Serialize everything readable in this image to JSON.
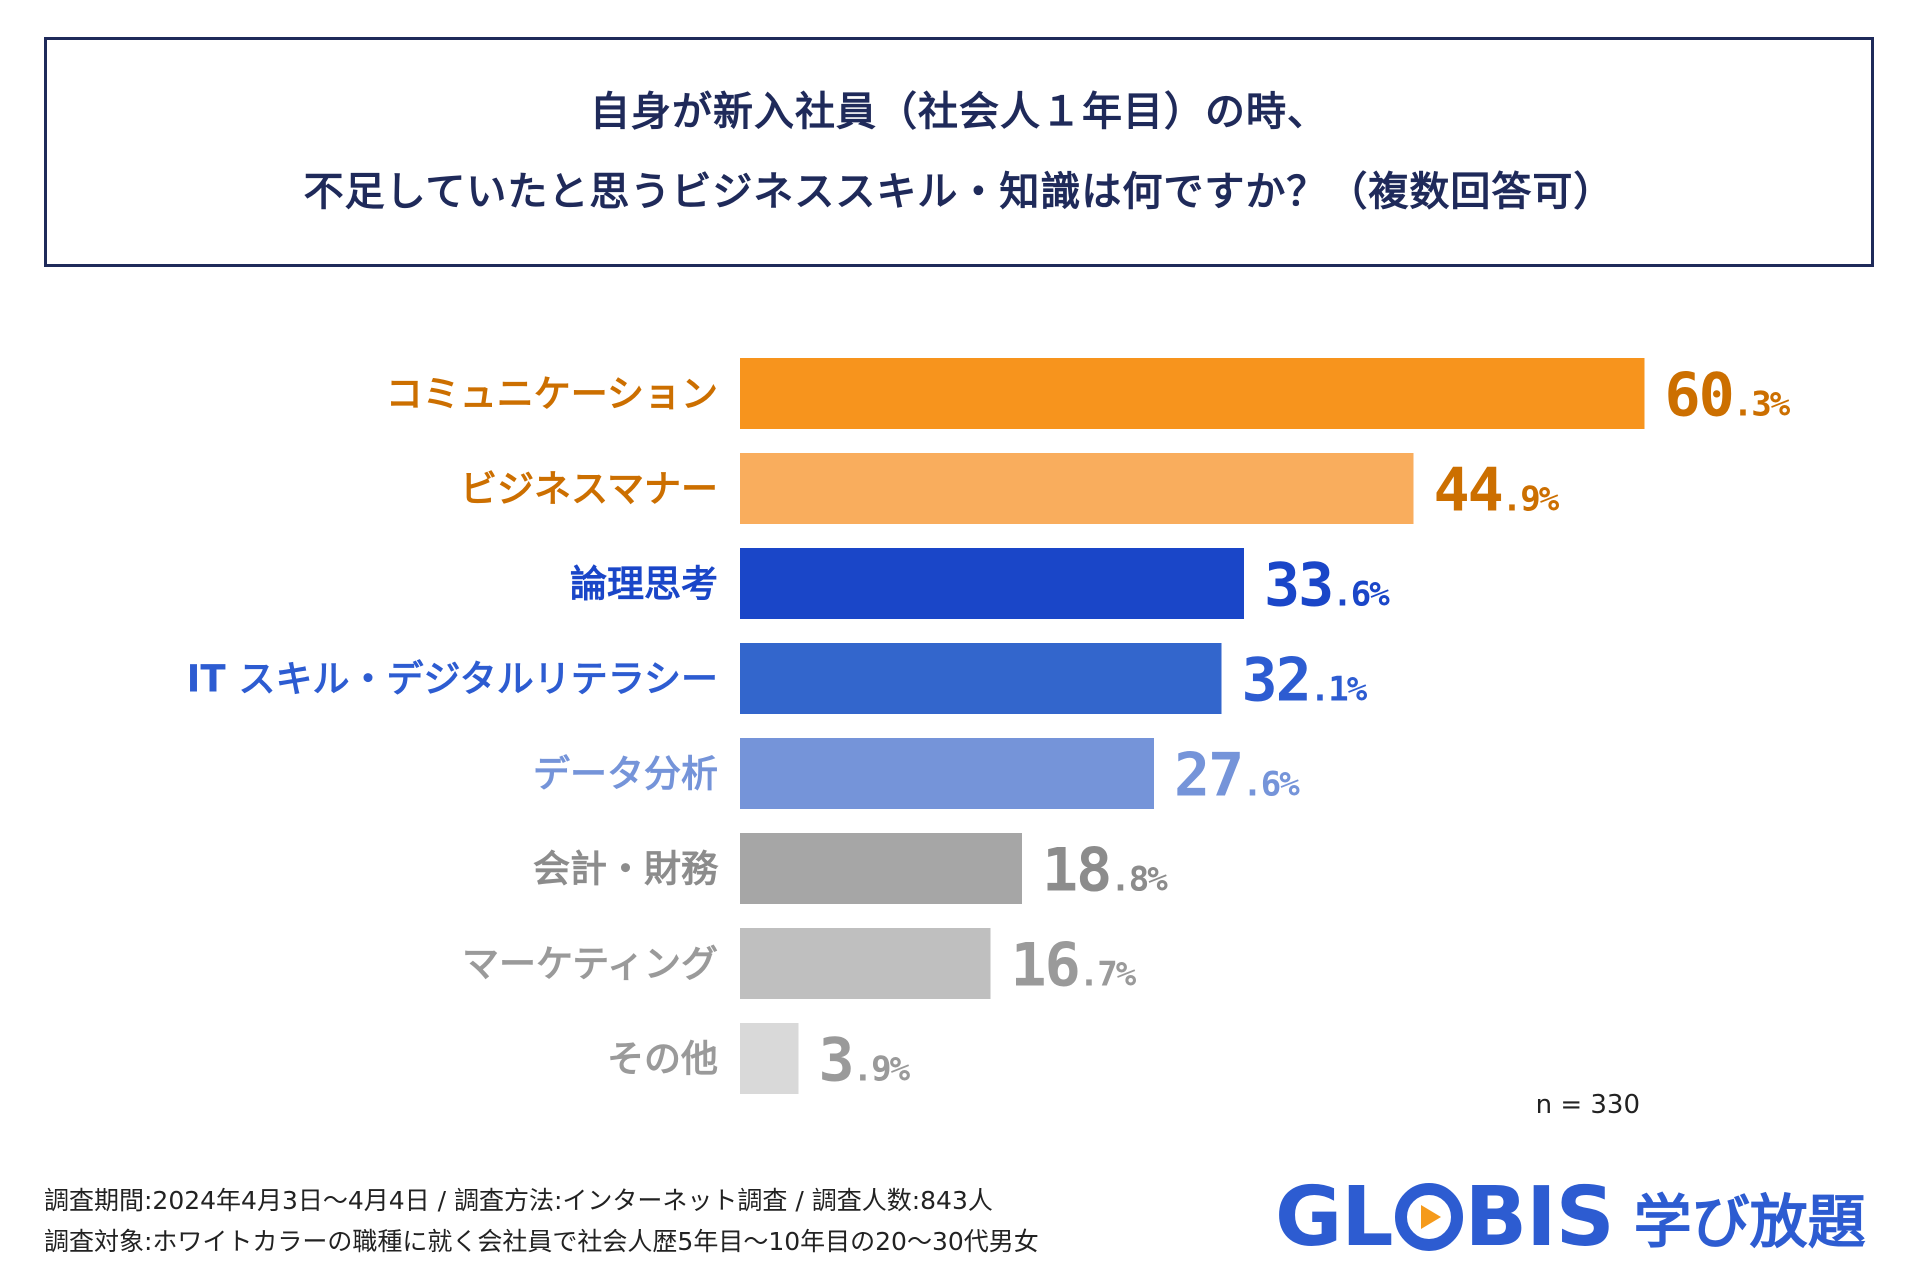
{
  "chart_data": {
    "type": "bar",
    "orientation": "horizontal",
    "title_lines": [
      "自身が新入社員（社会人１年目）の時、",
      "不足していたと思うビジネススキル・知識は何ですか？（複数回答可）"
    ],
    "categories": [
      "コミュニケーション",
      "ビジネスマナー",
      "論理思考",
      "IT スキル・デジタルリテラシー",
      "データ分析",
      "会計・財務",
      "マーケティング",
      "その他"
    ],
    "values": [
      60.3,
      44.9,
      33.6,
      32.1,
      27.6,
      18.8,
      16.7,
      3.9
    ],
    "value_int": [
      "60",
      "44",
      "33",
      "32",
      "27",
      "18",
      "16",
      "3"
    ],
    "value_frac": [
      ".3%",
      ".9%",
      ".6%",
      ".1%",
      ".6%",
      ".8%",
      ".7%",
      ".9%"
    ],
    "bar_colors": [
      "#f7941d",
      "#f9ad5d",
      "#1a46c8",
      "#3366cc",
      "#7594d9",
      "#a6a6a6",
      "#bfbfbf",
      "#d9d9d9"
    ],
    "label_colors": [
      "#cc6f00",
      "#cc6f00",
      "#1a46c8",
      "#2d5cd1",
      "#7594d9",
      "#8c8c8c",
      "#9a9a9a",
      "#9a9a9a"
    ],
    "xlim": [
      0,
      100
    ],
    "grid": false,
    "legend": "none",
    "sample_size": "n = 330"
  },
  "footer": {
    "line1": "調査期間:2024年4月3日〜4月4日 / 調査方法:インターネット調査 / 調査人数:843人",
    "line2": "調査対象:ホワイトカラーの職種に就く会社員で社会人歴5年目〜10年目の20〜30代男女"
  },
  "logo": {
    "part1": "GL",
    "part2": "BIS",
    "sub": "学び放題"
  },
  "colors": {
    "title": "#1f2a5a",
    "brand": "#2d5cd1",
    "play": "#f59a1b"
  }
}
